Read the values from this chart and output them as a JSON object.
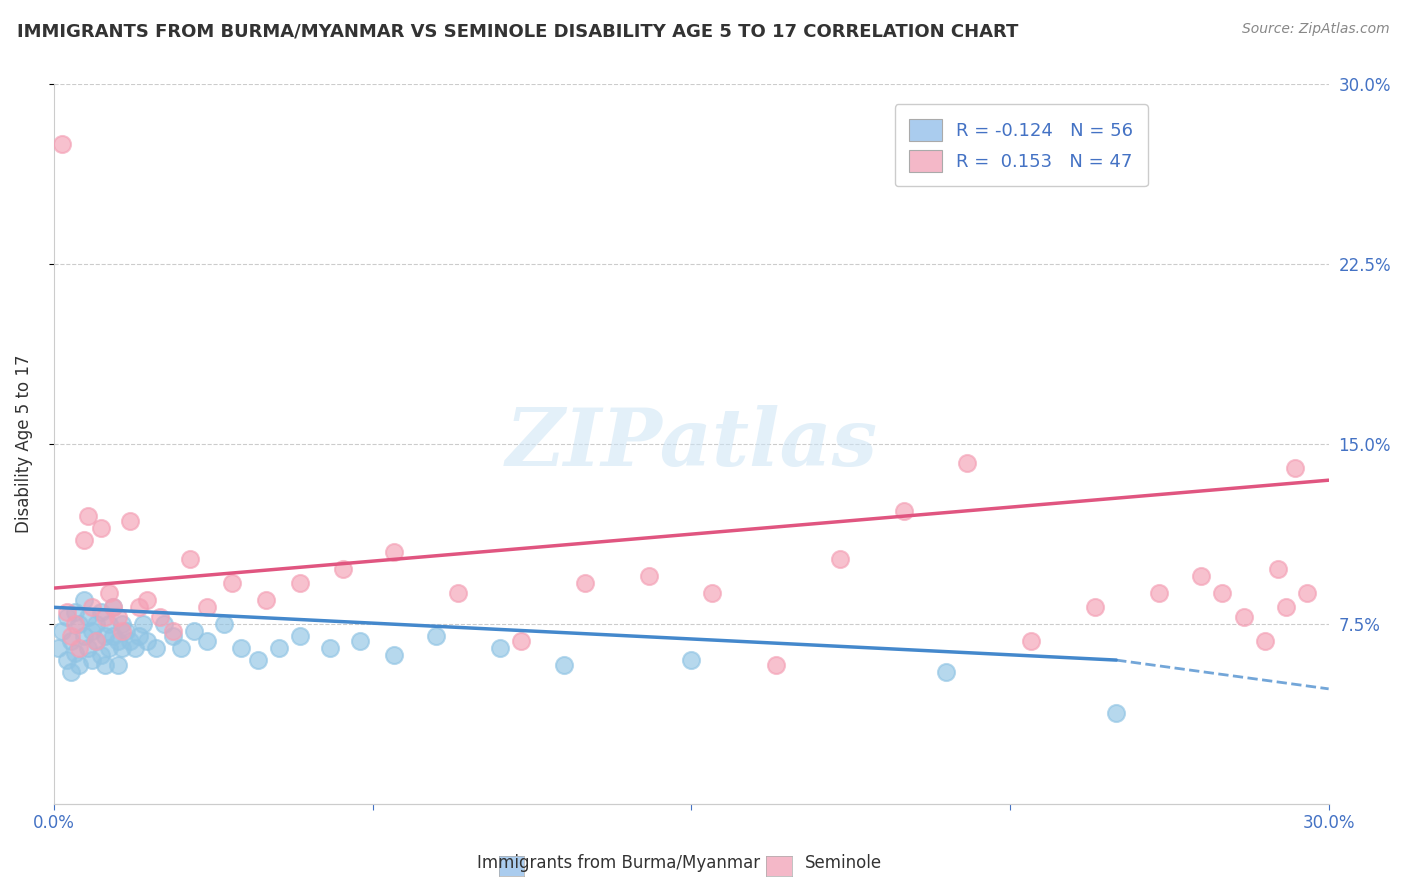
{
  "title": "IMMIGRANTS FROM BURMA/MYANMAR VS SEMINOLE DISABILITY AGE 5 TO 17 CORRELATION CHART",
  "source": "Source: ZipAtlas.com",
  "ylabel": "Disability Age 5 to 17",
  "xlabel_label1": "Immigrants from Burma/Myanmar",
  "xlabel_label2": "Seminole",
  "xmin": 0.0,
  "xmax": 0.3,
  "ymin": 0.0,
  "ymax": 0.3,
  "right_ytick_labels": [
    "7.5%",
    "15.0%",
    "22.5%",
    "30.0%"
  ],
  "blue_color": "#90c4e4",
  "pink_color": "#f4a0b5",
  "blue_R": -0.124,
  "blue_N": 56,
  "pink_R": 0.153,
  "pink_N": 47,
  "blue_line_color": "#4488cc",
  "pink_line_color": "#e05580",
  "watermark": "ZIPatlas",
  "blue_scatter_x": [
    0.001,
    0.002,
    0.003,
    0.003,
    0.004,
    0.004,
    0.005,
    0.005,
    0.006,
    0.006,
    0.007,
    0.007,
    0.008,
    0.008,
    0.009,
    0.009,
    0.01,
    0.01,
    0.011,
    0.011,
    0.012,
    0.012,
    0.013,
    0.013,
    0.014,
    0.014,
    0.015,
    0.015,
    0.016,
    0.016,
    0.017,
    0.018,
    0.019,
    0.02,
    0.021,
    0.022,
    0.024,
    0.026,
    0.028,
    0.03,
    0.033,
    0.036,
    0.04,
    0.044,
    0.048,
    0.053,
    0.058,
    0.065,
    0.072,
    0.08,
    0.09,
    0.105,
    0.12,
    0.15,
    0.21,
    0.25
  ],
  "blue_scatter_y": [
    0.065,
    0.072,
    0.06,
    0.078,
    0.068,
    0.055,
    0.08,
    0.063,
    0.075,
    0.058,
    0.07,
    0.085,
    0.065,
    0.078,
    0.072,
    0.06,
    0.075,
    0.068,
    0.08,
    0.062,
    0.07,
    0.058,
    0.075,
    0.065,
    0.07,
    0.082,
    0.068,
    0.058,
    0.075,
    0.065,
    0.072,
    0.068,
    0.065,
    0.07,
    0.075,
    0.068,
    0.065,
    0.075,
    0.07,
    0.065,
    0.072,
    0.068,
    0.075,
    0.065,
    0.06,
    0.065,
    0.07,
    0.065,
    0.068,
    0.062,
    0.07,
    0.065,
    0.058,
    0.06,
    0.055,
    0.038
  ],
  "pink_scatter_x": [
    0.002,
    0.003,
    0.004,
    0.005,
    0.006,
    0.007,
    0.008,
    0.009,
    0.01,
    0.011,
    0.012,
    0.013,
    0.014,
    0.015,
    0.016,
    0.018,
    0.02,
    0.022,
    0.025,
    0.028,
    0.032,
    0.036,
    0.042,
    0.05,
    0.058,
    0.068,
    0.08,
    0.095,
    0.11,
    0.125,
    0.14,
    0.155,
    0.17,
    0.185,
    0.2,
    0.215,
    0.23,
    0.245,
    0.26,
    0.27,
    0.275,
    0.28,
    0.285,
    0.288,
    0.29,
    0.292,
    0.295
  ],
  "pink_scatter_y": [
    0.275,
    0.08,
    0.07,
    0.075,
    0.065,
    0.11,
    0.12,
    0.082,
    0.068,
    0.115,
    0.078,
    0.088,
    0.082,
    0.078,
    0.072,
    0.118,
    0.082,
    0.085,
    0.078,
    0.072,
    0.102,
    0.082,
    0.092,
    0.085,
    0.092,
    0.098,
    0.105,
    0.088,
    0.068,
    0.092,
    0.095,
    0.088,
    0.058,
    0.102,
    0.122,
    0.142,
    0.068,
    0.082,
    0.088,
    0.095,
    0.088,
    0.078,
    0.068,
    0.098,
    0.082,
    0.14,
    0.088
  ]
}
